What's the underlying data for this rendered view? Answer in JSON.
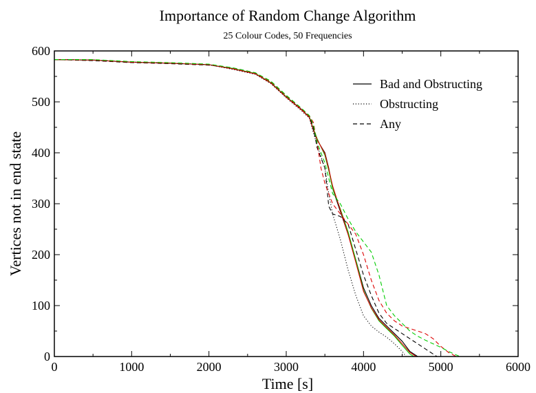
{
  "chart_data": {
    "type": "line",
    "title": "Importance of Random Change Algorithm",
    "subtitle": "25 Colour Codes, 50 Frequencies",
    "xlabel": "Time [s]",
    "ylabel": "Vertices not in end state",
    "xlim": [
      0,
      6000
    ],
    "ylim": [
      0,
      600
    ],
    "xticks": [
      0,
      1000,
      2000,
      3000,
      4000,
      5000,
      6000
    ],
    "yticks": [
      0,
      100,
      200,
      300,
      400,
      500,
      600
    ],
    "grid": false,
    "legend_position": "top-right",
    "legend": [
      {
        "label": "Bad and Obstructing",
        "style": "solid"
      },
      {
        "label": "Obstructing",
        "style": "dotted"
      },
      {
        "label": "Any",
        "style": "dashed"
      }
    ],
    "series": [
      {
        "legend_index": 0,
        "color": "#000000",
        "style": "solid",
        "points": [
          [
            0,
            583
          ],
          [
            500,
            582
          ],
          [
            1000,
            578
          ],
          [
            1500,
            576
          ],
          [
            2000,
            573
          ],
          [
            2300,
            565
          ],
          [
            2600,
            555
          ],
          [
            2800,
            538
          ],
          [
            3000,
            510
          ],
          [
            3200,
            485
          ],
          [
            3300,
            470
          ],
          [
            3350,
            445
          ],
          [
            3400,
            425
          ],
          [
            3500,
            400
          ],
          [
            3550,
            370
          ],
          [
            3600,
            330
          ],
          [
            3700,
            285
          ],
          [
            3800,
            240
          ],
          [
            3900,
            190
          ],
          [
            4000,
            135
          ],
          [
            4100,
            100
          ],
          [
            4200,
            75
          ],
          [
            4300,
            60
          ],
          [
            4400,
            45
          ],
          [
            4500,
            30
          ],
          [
            4600,
            10
          ],
          [
            4700,
            0
          ]
        ]
      },
      {
        "legend_index": 0,
        "color": "#00cc00",
        "style": "solid",
        "points": [
          [
            0,
            583
          ],
          [
            500,
            582
          ],
          [
            1000,
            578
          ],
          [
            1500,
            576
          ],
          [
            2000,
            573
          ],
          [
            2300,
            566
          ],
          [
            2600,
            556
          ],
          [
            2800,
            538
          ],
          [
            3000,
            510
          ],
          [
            3200,
            484
          ],
          [
            3300,
            470
          ],
          [
            3350,
            448
          ],
          [
            3400,
            428
          ],
          [
            3500,
            395
          ],
          [
            3550,
            365
          ],
          [
            3600,
            330
          ],
          [
            3700,
            290
          ],
          [
            3800,
            245
          ],
          [
            3900,
            190
          ],
          [
            4000,
            130
          ],
          [
            4100,
            95
          ],
          [
            4200,
            70
          ],
          [
            4300,
            55
          ],
          [
            4400,
            40
          ],
          [
            4500,
            22
          ],
          [
            4600,
            5
          ],
          [
            4650,
            0
          ]
        ]
      },
      {
        "legend_index": 0,
        "color": "#dd0000",
        "style": "solid",
        "points": [
          [
            0,
            583
          ],
          [
            500,
            582
          ],
          [
            1000,
            578
          ],
          [
            1500,
            576
          ],
          [
            2000,
            573
          ],
          [
            2300,
            565
          ],
          [
            2600,
            555
          ],
          [
            2800,
            537
          ],
          [
            3000,
            509
          ],
          [
            3200,
            484
          ],
          [
            3300,
            469
          ],
          [
            3350,
            446
          ],
          [
            3400,
            426
          ],
          [
            3500,
            398
          ],
          [
            3550,
            368
          ],
          [
            3600,
            335
          ],
          [
            3700,
            288
          ],
          [
            3800,
            240
          ],
          [
            3900,
            185
          ],
          [
            4000,
            128
          ],
          [
            4100,
            96
          ],
          [
            4200,
            72
          ],
          [
            4300,
            57
          ],
          [
            4400,
            42
          ],
          [
            4500,
            25
          ],
          [
            4600,
            8
          ],
          [
            4680,
            0
          ]
        ]
      },
      {
        "legend_index": 1,
        "color": "#000000",
        "style": "dotted",
        "points": [
          [
            0,
            583
          ],
          [
            500,
            582
          ],
          [
            1000,
            578
          ],
          [
            1500,
            576
          ],
          [
            2000,
            573
          ],
          [
            2300,
            564
          ],
          [
            2600,
            554
          ],
          [
            2800,
            536
          ],
          [
            3000,
            508
          ],
          [
            3200,
            482
          ],
          [
            3300,
            468
          ],
          [
            3350,
            440
          ],
          [
            3400,
            415
          ],
          [
            3500,
            370
          ],
          [
            3550,
            320
          ],
          [
            3600,
            280
          ],
          [
            3700,
            230
          ],
          [
            3800,
            170
          ],
          [
            3900,
            120
          ],
          [
            4000,
            80
          ],
          [
            4100,
            60
          ],
          [
            4200,
            48
          ],
          [
            4300,
            38
          ],
          [
            4400,
            25
          ],
          [
            4500,
            10
          ],
          [
            4550,
            0
          ]
        ]
      },
      {
        "legend_index": 2,
        "color": "#000000",
        "style": "dashed",
        "points": [
          [
            0,
            583
          ],
          [
            500,
            581
          ],
          [
            1000,
            577
          ],
          [
            1500,
            575
          ],
          [
            2000,
            572
          ],
          [
            2300,
            567
          ],
          [
            2600,
            557
          ],
          [
            2800,
            540
          ],
          [
            3000,
            512
          ],
          [
            3200,
            486
          ],
          [
            3300,
            472
          ],
          [
            3350,
            450
          ],
          [
            3400,
            410
          ],
          [
            3500,
            370
          ],
          [
            3550,
            295
          ],
          [
            3600,
            280
          ],
          [
            3700,
            275
          ],
          [
            3800,
            260
          ],
          [
            3900,
            210
          ],
          [
            4000,
            160
          ],
          [
            4100,
            120
          ],
          [
            4200,
            85
          ],
          [
            4300,
            65
          ],
          [
            4400,
            55
          ],
          [
            4500,
            45
          ],
          [
            4600,
            35
          ],
          [
            4700,
            25
          ],
          [
            4800,
            15
          ],
          [
            4900,
            5
          ],
          [
            4950,
            0
          ]
        ]
      },
      {
        "legend_index": 2,
        "color": "#dd0000",
        "style": "dashed",
        "points": [
          [
            0,
            583
          ],
          [
            500,
            582
          ],
          [
            1000,
            578
          ],
          [
            1500,
            576
          ],
          [
            2000,
            573
          ],
          [
            2300,
            566
          ],
          [
            2600,
            556
          ],
          [
            2800,
            540
          ],
          [
            3000,
            512
          ],
          [
            3200,
            486
          ],
          [
            3300,
            472
          ],
          [
            3350,
            460
          ],
          [
            3400,
            420
          ],
          [
            3450,
            370
          ],
          [
            3500,
            340
          ],
          [
            3550,
            320
          ],
          [
            3600,
            300
          ],
          [
            3700,
            280
          ],
          [
            3800,
            260
          ],
          [
            3900,
            240
          ],
          [
            4000,
            200
          ],
          [
            4100,
            150
          ],
          [
            4200,
            110
          ],
          [
            4300,
            85
          ],
          [
            4400,
            70
          ],
          [
            4500,
            60
          ],
          [
            4600,
            55
          ],
          [
            4700,
            50
          ],
          [
            4800,
            45
          ],
          [
            4900,
            35
          ],
          [
            5000,
            20
          ],
          [
            5100,
            8
          ],
          [
            5200,
            0
          ]
        ]
      },
      {
        "legend_index": 2,
        "color": "#00cc00",
        "style": "dashed",
        "points": [
          [
            0,
            583
          ],
          [
            500,
            583
          ],
          [
            1000,
            579
          ],
          [
            1500,
            577
          ],
          [
            2000,
            574
          ],
          [
            2300,
            567
          ],
          [
            2600,
            557
          ],
          [
            2800,
            541
          ],
          [
            3000,
            513
          ],
          [
            3200,
            487
          ],
          [
            3300,
            473
          ],
          [
            3350,
            455
          ],
          [
            3400,
            420
          ],
          [
            3500,
            380
          ],
          [
            3550,
            350
          ],
          [
            3600,
            320
          ],
          [
            3700,
            300
          ],
          [
            3800,
            270
          ],
          [
            3900,
            245
          ],
          [
            4000,
            225
          ],
          [
            4100,
            205
          ],
          [
            4200,
            160
          ],
          [
            4300,
            100
          ],
          [
            4400,
            80
          ],
          [
            4500,
            65
          ],
          [
            4600,
            50
          ],
          [
            4700,
            40
          ],
          [
            4800,
            32
          ],
          [
            4900,
            25
          ],
          [
            5000,
            18
          ],
          [
            5100,
            10
          ],
          [
            5200,
            3
          ],
          [
            5250,
            0
          ]
        ]
      }
    ]
  }
}
